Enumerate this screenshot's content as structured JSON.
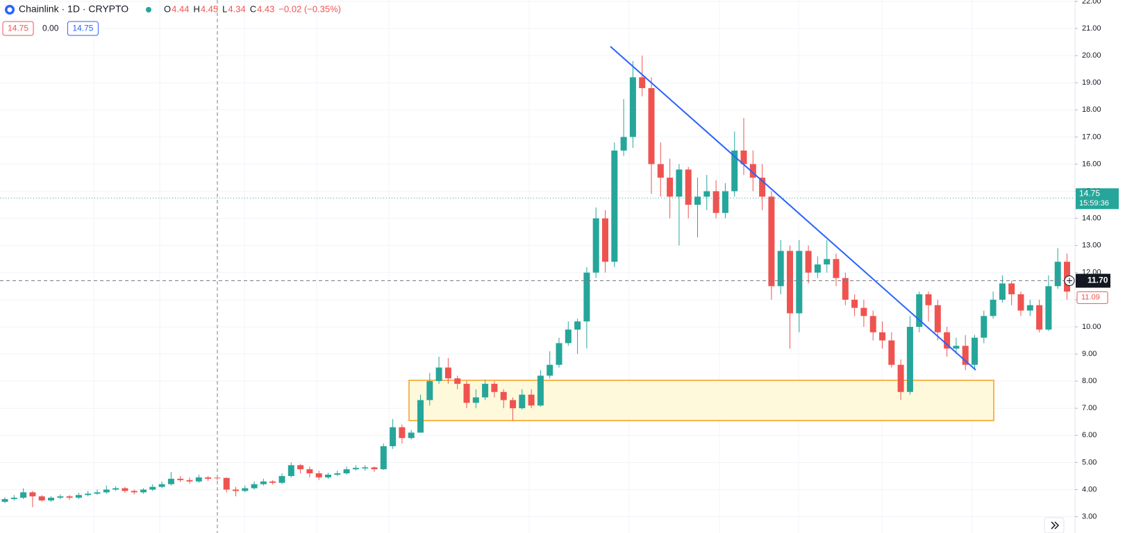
{
  "chart_data": {
    "type": "candlestick",
    "title": "Chainlink · 1D · CRYPTO",
    "ohlc": [
      {
        "label": "O",
        "value": 4.44
      },
      {
        "label": "H",
        "value": 4.45
      },
      {
        "label": "L",
        "value": 4.34
      },
      {
        "label": "C",
        "value": 4.43
      }
    ],
    "change": "−0.02 (−0.35%)",
    "badges": [
      "14.75",
      "0.00",
      "14.75"
    ],
    "up_color": "#26a69a",
    "down_color": "#ef5350",
    "ylim": [
      2.4,
      22.05
    ],
    "yticks": [
      {
        "value": 3,
        "label": "3.00"
      },
      {
        "value": 4,
        "label": "4.00"
      },
      {
        "value": 5,
        "label": "5.00"
      },
      {
        "value": 6,
        "label": "6.00"
      },
      {
        "value": 7,
        "label": "7.00"
      },
      {
        "value": 8,
        "label": "8.00"
      },
      {
        "value": 9,
        "label": "9.00"
      },
      {
        "value": 10,
        "label": "10.00"
      },
      {
        "value": 11,
        "label": "11.00"
      },
      {
        "value": 12,
        "label": "12.00"
      },
      {
        "value": 13,
        "label": "13.00"
      },
      {
        "value": 14,
        "label": "14.00"
      },
      {
        "value": 15,
        "label": "15.00"
      },
      {
        "value": 16,
        "label": "16.00"
      },
      {
        "value": 17,
        "label": "17.00"
      },
      {
        "value": 18,
        "label": "18.00"
      },
      {
        "value": 19,
        "label": "19.00"
      },
      {
        "value": 20,
        "label": "20.00"
      },
      {
        "value": 21,
        "label": "21.00"
      },
      {
        "value": 22,
        "label": "22.00"
      }
    ],
    "grid": true,
    "last_price": 14.75,
    "countdown": "15:59:36",
    "crosshair_price": {
      "value": 11.7,
      "label": "11.70"
    },
    "marker_price": 11.09,
    "open": [
      3.55,
      3.65,
      3.7,
      3.9,
      3.75,
      3.6,
      3.7,
      3.75,
      3.7,
      3.8,
      3.85,
      3.9,
      4.0,
      4.05,
      3.95,
      3.9,
      4.0,
      4.1,
      4.2,
      4.4,
      4.35,
      4.3,
      4.45,
      4.44,
      4.43,
      4.0,
      3.95,
      4.05,
      4.2,
      4.3,
      4.25,
      4.5,
      4.9,
      4.75,
      4.6,
      4.45,
      4.55,
      4.6,
      4.75,
      4.78,
      4.82,
      4.75,
      5.6,
      6.3,
      5.9,
      6.1,
      7.3,
      8.0,
      8.5,
      8.1,
      7.9,
      7.2,
      7.4,
      7.9,
      7.6,
      7.3,
      7.0,
      7.5,
      7.1,
      8.2,
      8.6,
      9.4,
      9.9,
      10.2,
      12.0,
      14.0,
      12.4,
      16.5,
      17.0,
      19.2,
      18.8,
      16.0,
      15.5,
      14.8,
      15.8,
      14.5,
      14.8,
      15.0,
      14.2,
      15.0,
      16.5,
      16.0,
      15.5,
      14.8,
      11.5,
      12.8,
      10.5,
      12.8,
      12.0,
      12.3,
      12.5,
      11.8,
      11.0,
      10.7,
      10.4,
      9.8,
      9.5,
      8.6,
      7.6,
      10.0,
      11.2,
      10.8,
      9.8,
      9.2,
      9.3,
      8.6,
      9.6,
      10.4,
      11.0,
      11.6,
      11.2,
      10.6,
      10.8,
      9.9,
      11.5,
      12.4
    ],
    "high": [
      3.72,
      3.8,
      4.05,
      3.95,
      3.8,
      3.75,
      3.82,
      3.8,
      3.88,
      3.95,
      4.0,
      4.15,
      4.12,
      4.1,
      4.0,
      4.05,
      4.2,
      4.3,
      4.65,
      4.5,
      4.45,
      4.55,
      4.5,
      4.45,
      4.45,
      4.1,
      4.15,
      4.3,
      4.4,
      4.35,
      4.6,
      5.0,
      4.95,
      4.85,
      4.7,
      4.62,
      4.7,
      4.85,
      4.9,
      4.9,
      4.85,
      5.7,
      6.6,
      6.4,
      6.2,
      7.5,
      8.3,
      8.9,
      8.85,
      8.2,
      8.0,
      7.7,
      8.05,
      8.0,
      7.7,
      7.4,
      7.7,
      7.7,
      8.4,
      9.1,
      9.6,
      10.2,
      10.3,
      12.2,
      14.4,
      14.3,
      16.8,
      18.4,
      19.8,
      20.0,
      19.2,
      16.8,
      16.2,
      16.0,
      15.9,
      15.5,
      15.6,
      15.4,
      15.3,
      17.2,
      17.7,
      16.5,
      16.0,
      15.0,
      13.2,
      13.0,
      13.2,
      13.0,
      12.6,
      13.2,
      12.7,
      12.0,
      11.2,
      11.0,
      10.6,
      10.2,
      9.8,
      8.8,
      10.4,
      11.3,
      11.3,
      11.0,
      10.0,
      9.6,
      9.7,
      9.7,
      10.6,
      11.3,
      11.9,
      11.7,
      11.3,
      11.0,
      11.0,
      11.9,
      12.9,
      12.7
    ],
    "low": [
      3.5,
      3.6,
      3.65,
      3.35,
      3.55,
      3.55,
      3.65,
      3.62,
      3.65,
      3.75,
      3.8,
      3.85,
      3.95,
      3.88,
      3.82,
      3.85,
      3.95,
      4.05,
      4.15,
      4.28,
      4.22,
      4.25,
      4.32,
      4.34,
      3.9,
      3.75,
      3.9,
      4.0,
      4.15,
      4.18,
      4.2,
      4.45,
      4.6,
      4.45,
      4.35,
      4.4,
      4.5,
      4.55,
      4.7,
      4.7,
      4.65,
      4.72,
      5.5,
      5.7,
      5.85,
      6.1,
      7.1,
      7.9,
      7.9,
      7.7,
      7.0,
      7.0,
      7.3,
      7.4,
      7.0,
      6.55,
      6.95,
      7.0,
      7.05,
      8.1,
      8.5,
      9.3,
      9.0,
      9.2,
      11.8,
      12.0,
      12.2,
      16.3,
      16.6,
      18.5,
      14.9,
      14.8,
      14.0,
      13.0,
      14.0,
      13.3,
      14.3,
      14.0,
      14.0,
      14.8,
      15.6,
      15.0,
      14.3,
      11.0,
      11.2,
      9.2,
      9.8,
      11.6,
      11.8,
      12.0,
      11.5,
      10.8,
      10.4,
      10.0,
      9.5,
      9.2,
      8.5,
      7.3,
      7.5,
      9.8,
      10.2,
      9.5,
      8.9,
      9.0,
      8.4,
      8.4,
      9.4,
      10.3,
      10.9,
      10.8,
      10.4,
      10.4,
      9.8,
      9.85,
      11.4,
      11.0
    ],
    "close": [
      3.65,
      3.7,
      3.9,
      3.75,
      3.6,
      3.7,
      3.75,
      3.7,
      3.8,
      3.85,
      3.9,
      4.0,
      4.05,
      3.95,
      3.9,
      4.0,
      4.1,
      4.2,
      4.4,
      4.35,
      4.3,
      4.45,
      4.4,
      4.43,
      4.0,
      3.95,
      4.05,
      4.2,
      4.3,
      4.25,
      4.5,
      4.9,
      4.75,
      4.6,
      4.45,
      4.55,
      4.6,
      4.75,
      4.8,
      4.82,
      4.75,
      5.6,
      6.3,
      5.9,
      6.1,
      7.3,
      8.0,
      8.5,
      8.1,
      7.9,
      7.2,
      7.4,
      7.9,
      7.6,
      7.3,
      7.0,
      7.5,
      7.1,
      8.2,
      8.6,
      9.4,
      9.9,
      10.2,
      12.0,
      14.0,
      12.4,
      16.5,
      17.0,
      19.2,
      18.8,
      16.0,
      15.5,
      14.8,
      15.8,
      14.5,
      14.8,
      15.0,
      14.2,
      15.0,
      16.5,
      16.0,
      15.5,
      14.8,
      11.5,
      12.8,
      10.5,
      12.8,
      12.0,
      12.3,
      12.5,
      11.8,
      11.0,
      10.7,
      10.4,
      9.8,
      9.5,
      8.6,
      7.6,
      10.0,
      11.2,
      10.8,
      9.8,
      9.2,
      9.3,
      8.6,
      9.6,
      10.4,
      11.0,
      11.6,
      11.2,
      10.6,
      10.8,
      9.9,
      11.5,
      12.4,
      11.3
    ]
  }
}
